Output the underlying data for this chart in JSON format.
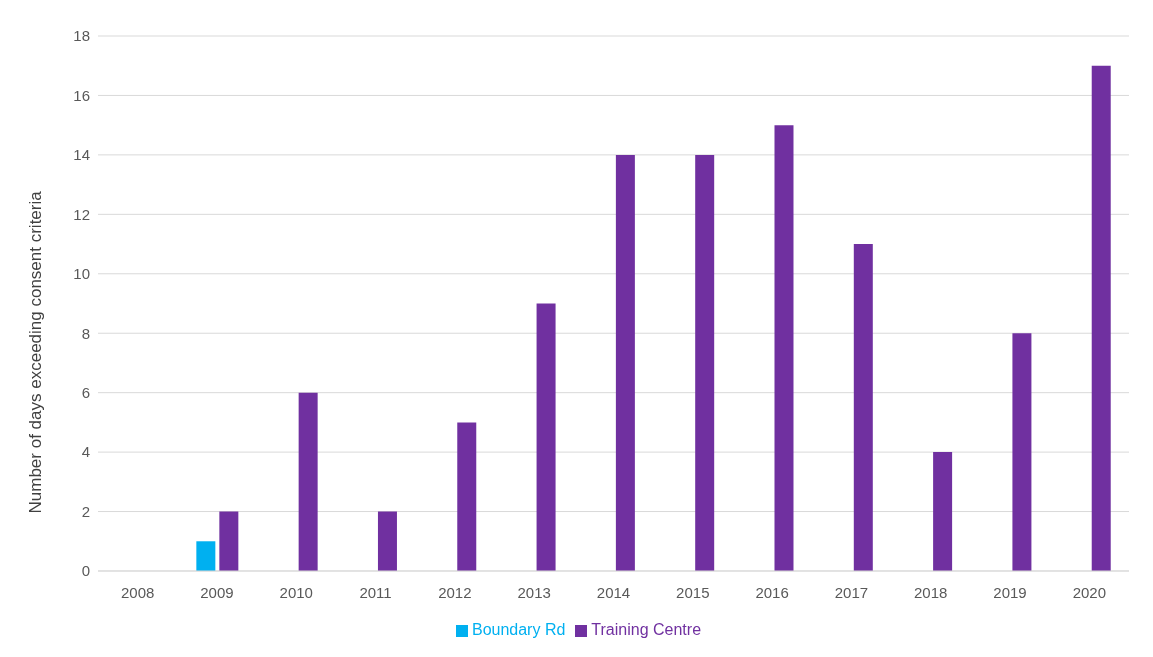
{
  "chart_data": {
    "type": "bar",
    "ylabel": "Number of days exceeding consent criteria",
    "categories": [
      "2008",
      "2009",
      "2010",
      "2011",
      "2012",
      "2013",
      "2014",
      "2015",
      "2016",
      "2017",
      "2018",
      "2019",
      "2020"
    ],
    "series": [
      {
        "name": "Boundary Rd",
        "color": "#00b0f0",
        "values": [
          null,
          1,
          null,
          null,
          null,
          null,
          null,
          null,
          null,
          null,
          null,
          null,
          null
        ]
      },
      {
        "name": "Training Centre",
        "color": "#7030a0",
        "values": [
          null,
          2,
          6,
          2,
          5,
          9,
          14,
          14,
          15,
          11,
          4,
          8,
          17
        ]
      }
    ],
    "ylim": [
      0,
      18
    ],
    "yticks": [
      0,
      2,
      4,
      6,
      8,
      10,
      12,
      14,
      16,
      18
    ],
    "grid": "y",
    "legend": "bottom"
  }
}
